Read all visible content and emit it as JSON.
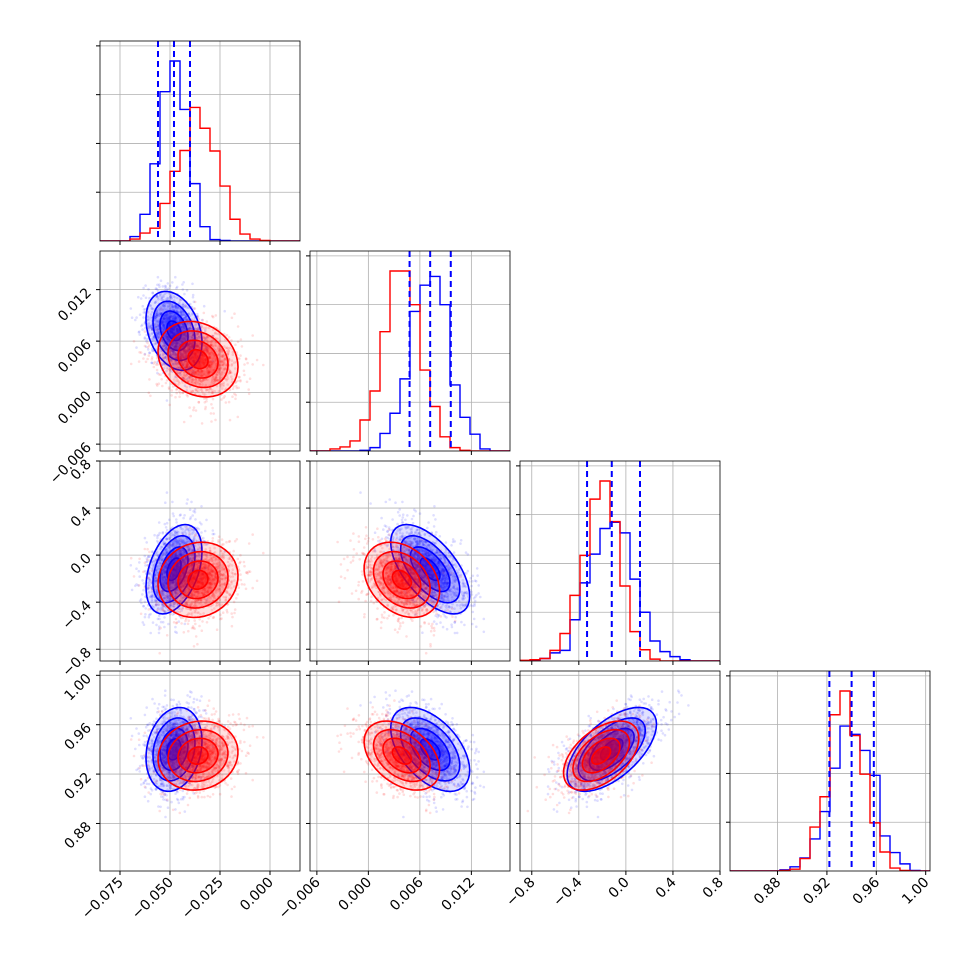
{
  "colors": {
    "series_a": "#0000ff",
    "series_b": "#ff0000",
    "grid": "#b0b0b0",
    "axis": "#000000"
  },
  "chart_data": {
    "type": "corner",
    "grid": true,
    "params": [
      {
        "range": [
          -0.085,
          0.015
        ],
        "ticks": [
          -0.075,
          -0.05,
          -0.025,
          0.0
        ],
        "tick_labels": [
          "−0.075",
          "−0.050",
          "−0.025",
          "0.000"
        ]
      },
      {
        "range": [
          -0.0068,
          0.0165
        ],
        "ticks": [
          -0.006,
          0.0,
          0.006,
          0.012
        ],
        "tick_labels": [
          "−0.006",
          "0.000",
          "0.006",
          "0.012"
        ]
      },
      {
        "range": [
          -0.9,
          0.8
        ],
        "ticks": [
          -0.8,
          -0.4,
          0.0,
          0.4,
          0.8
        ],
        "tick_labels": [
          "−0.8",
          "−0.4",
          "0.0",
          "0.4",
          "0.8"
        ]
      },
      {
        "range": [
          0.8415,
          1.0035
        ],
        "ticks": [
          0.88,
          0.92,
          0.96,
          1.0
        ],
        "tick_labels": [
          "0.88",
          "0.92",
          "0.96",
          "1.00"
        ]
      }
    ],
    "series": [
      {
        "name": "",
        "color": "#0000ff",
        "means": [
          -0.048,
          0.0072,
          -0.12,
          0.94
        ],
        "sds": [
          0.007,
          0.0023,
          0.19,
          0.017
        ],
        "corr": [
          [
            1,
            -0.3,
            0.4,
            0.2
          ],
          [
            -0.3,
            1,
            -0.6,
            -0.5
          ],
          [
            0.4,
            -0.6,
            1,
            0.6
          ],
          [
            0.2,
            -0.5,
            0.6,
            1
          ]
        ],
        "quantiles": [
          [
            -0.056,
            -0.048,
            -0.04
          ],
          [
            0.0048,
            0.0072,
            0.0096
          ],
          [
            -0.33,
            -0.12,
            0.12
          ],
          [
            0.922,
            0.94,
            0.958
          ]
        ]
      },
      {
        "name": "",
        "color": "#ff0000",
        "means": [
          -0.036,
          0.0039,
          -0.21,
          0.935
        ],
        "sds": [
          0.01,
          0.0022,
          0.16,
          0.014
        ],
        "corr": [
          [
            1,
            -0.2,
            0.1,
            0.1
          ],
          [
            -0.2,
            1,
            -0.3,
            -0.4
          ],
          [
            0.1,
            -0.3,
            1,
            0.5
          ],
          [
            0.1,
            -0.4,
            0.5,
            1
          ]
        ]
      }
    ]
  }
}
